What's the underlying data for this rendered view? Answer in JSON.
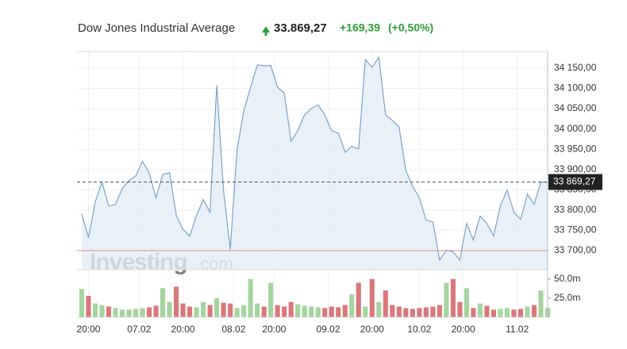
{
  "chart_data": {
    "type": "line",
    "title": "Dow Jones Industrial Average",
    "price": "33.869,27",
    "change": "+169,39",
    "change_pct": "(+0,50%)",
    "watermark": [
      "Investing",
      ".com"
    ],
    "color": "#7ba3c7",
    "fill": "#e4edf6",
    "values": [
      33791,
      33732,
      33820,
      33869,
      33810,
      33814,
      33853,
      33873,
      33884,
      33920,
      33892,
      33830,
      33888,
      33892,
      33787,
      33752,
      33736,
      33787,
      33826,
      33795,
      34107,
      33849,
      33703,
      33947,
      34045,
      34103,
      34158,
      34156,
      34156,
      34103,
      34088,
      33970,
      33996,
      34035,
      34050,
      34060,
      34035,
      33996,
      33990,
      33943,
      33957,
      33951,
      34171,
      34152,
      34177,
      34035,
      34021,
      34005,
      33898,
      33859,
      33830,
      33775,
      33771,
      33677,
      33701,
      33697,
      33677,
      33767,
      33726,
      33785,
      33767,
      33736,
      33810,
      33849,
      33795,
      33777,
      33839,
      33814,
      33869,
      33869.27
    ],
    "xlim": [
      -0.7,
      69
    ],
    "ylim": [
      33653,
      34191
    ],
    "yticks": [
      {
        "value": 33700,
        "label": "33 700,00"
      },
      {
        "value": 33750,
        "label": "33 750,00"
      },
      {
        "value": 33800,
        "label": "33 800,00"
      },
      {
        "value": 33850,
        "label": "33 850,00"
      },
      {
        "value": 33900,
        "label": "33 900,00"
      },
      {
        "value": 33950,
        "label": "33 950,00"
      },
      {
        "value": 34000,
        "label": "34 000,00"
      },
      {
        "value": 34050,
        "label": "34 050,00"
      },
      {
        "value": 34100,
        "label": "34 100,00"
      },
      {
        "value": 34150,
        "label": "34 150,00"
      }
    ],
    "xticks": [
      {
        "value": 1,
        "label": "20:00"
      },
      {
        "value": 8.5,
        "label": "07.02"
      },
      {
        "value": 15,
        "label": "20:00"
      },
      {
        "value": 22.5,
        "label": "08.02"
      },
      {
        "value": 28.5,
        "label": "20:00"
      },
      {
        "value": 36.5,
        "label": "09.02"
      },
      {
        "value": 43,
        "label": "20:00"
      },
      {
        "value": 50,
        "label": "10.02"
      },
      {
        "value": 56.5,
        "label": "20:00"
      },
      {
        "value": 64.5,
        "label": "11.02"
      }
    ],
    "current_price": {
      "value": 33869.27,
      "label": "33 869,27"
    },
    "reference_line": 33699.88,
    "grid": true,
    "volume": {
      "values": [
        37,
        28,
        18,
        16,
        14,
        12,
        10,
        10,
        11,
        12,
        13,
        15,
        38,
        20,
        40,
        18,
        14,
        13,
        20,
        16,
        25,
        19,
        18,
        12,
        16,
        50,
        18,
        14,
        45,
        16,
        14,
        20,
        17,
        15,
        14,
        13,
        12,
        14,
        13,
        16,
        30,
        45,
        14,
        50,
        20,
        35,
        16,
        14,
        12,
        11,
        12,
        13,
        14,
        16,
        45,
        50,
        20,
        38,
        12,
        18,
        15,
        10,
        11,
        12,
        10,
        11,
        14,
        16,
        35,
        12
      ],
      "up_color": "#a6d4a0",
      "down_color": "#d9787b",
      "ylim": [
        0,
        57
      ],
      "yticks": [
        {
          "value": 25,
          "label": "25.0m"
        },
        {
          "value": 50,
          "label": "50.0m"
        }
      ]
    }
  }
}
